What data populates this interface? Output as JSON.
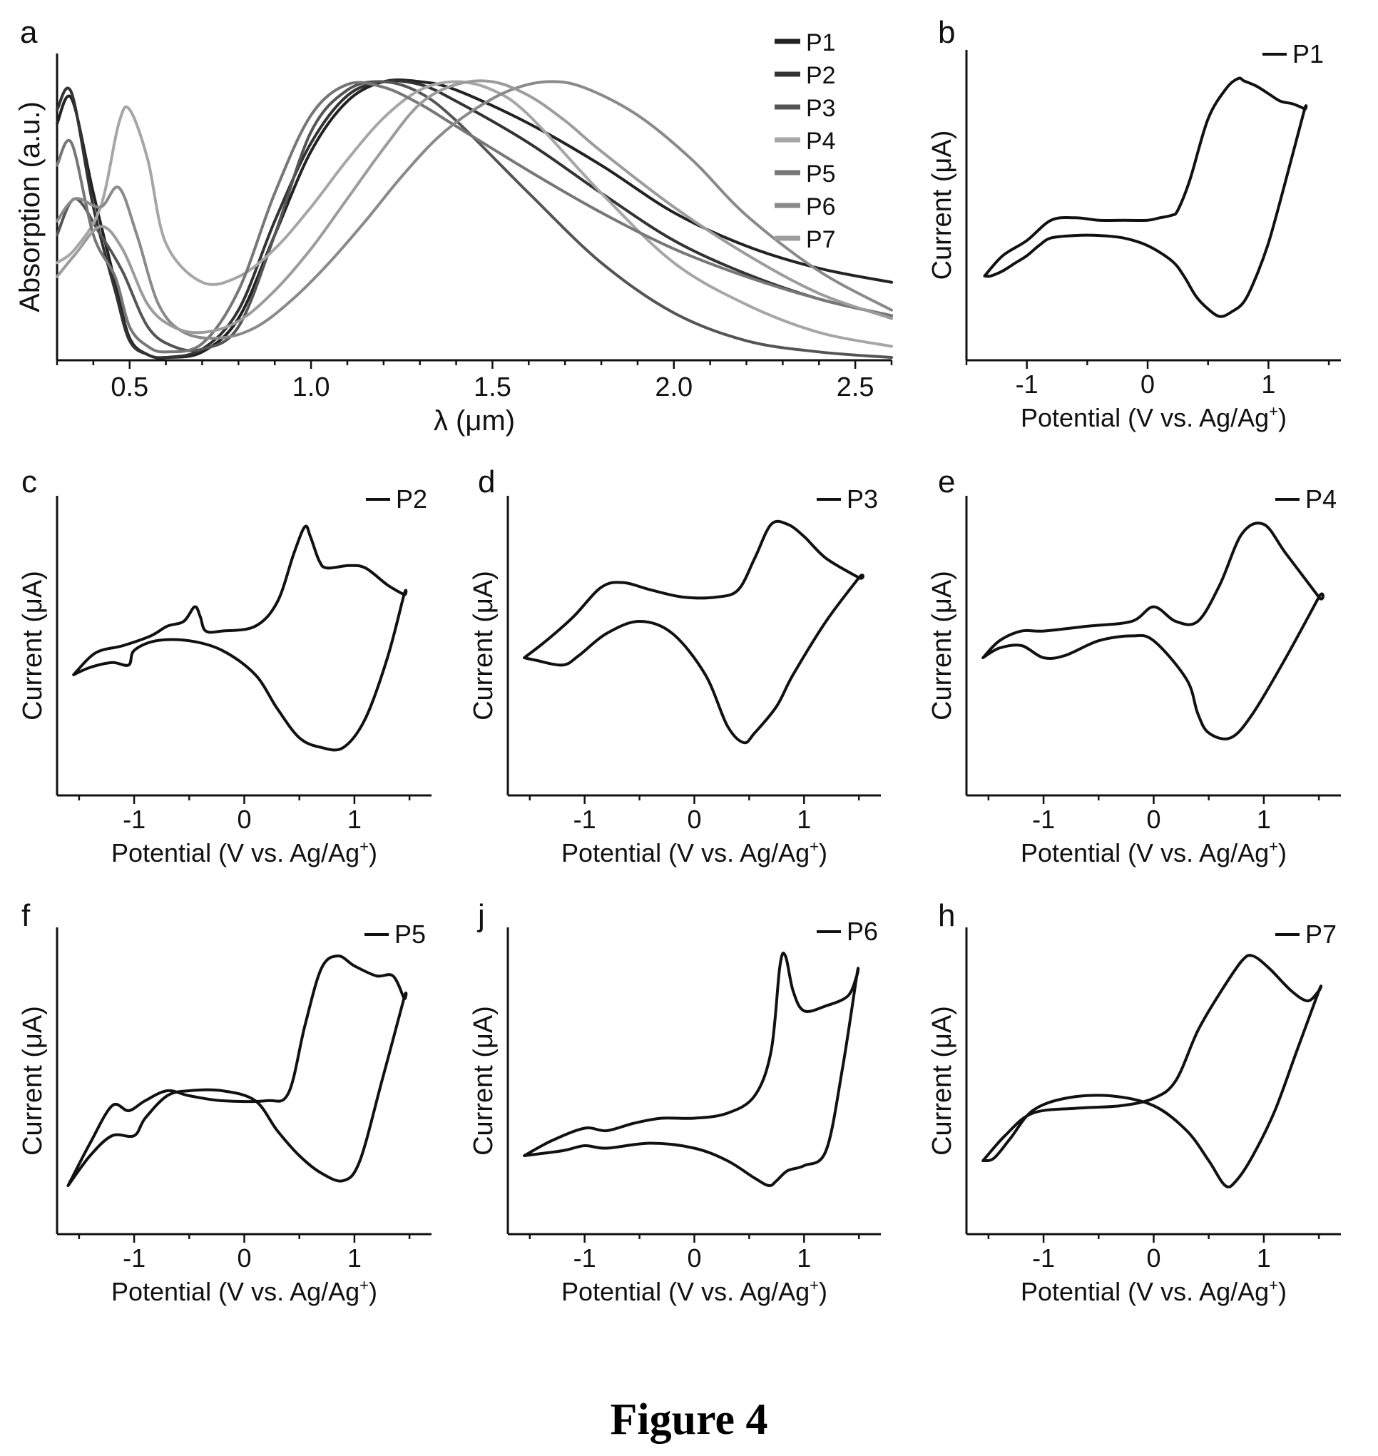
{
  "figure_caption": "Figure 4",
  "chart_data": [
    {
      "panel": "a",
      "type": "line",
      "xlabel": "λ (μm)",
      "ylabel": "Absorption (a.u.)",
      "xlim": [
        0.3,
        2.6
      ],
      "ylim": [
        0,
        1.05
      ],
      "xticks": [
        "0.5",
        "1.0",
        "1.5",
        "2.0",
        "2.5"
      ],
      "legend_position": "top-right",
      "series": [
        {
          "name": "P1",
          "color": "#222222",
          "x": [
            0.3,
            0.34,
            0.4,
            0.46,
            0.5,
            0.55,
            0.6,
            0.7,
            0.8,
            0.9,
            1.0,
            1.1,
            1.2,
            1.3,
            1.4,
            1.6,
            1.8,
            2.0,
            2.2,
            2.4,
            2.6
          ],
          "y": [
            0.85,
            0.94,
            0.6,
            0.28,
            0.08,
            0.02,
            0.01,
            0.03,
            0.15,
            0.45,
            0.75,
            0.93,
            1.0,
            1.0,
            0.97,
            0.85,
            0.7,
            0.53,
            0.41,
            0.33,
            0.28
          ]
        },
        {
          "name": "P2",
          "color": "#333333",
          "x": [
            0.3,
            0.34,
            0.4,
            0.46,
            0.5,
            0.55,
            0.6,
            0.7,
            0.8,
            0.9,
            1.0,
            1.1,
            1.2,
            1.3,
            1.4,
            1.6,
            1.8,
            2.0,
            2.2,
            2.4,
            2.6
          ],
          "y": [
            0.9,
            0.96,
            0.55,
            0.25,
            0.07,
            0.02,
            0.01,
            0.04,
            0.18,
            0.5,
            0.78,
            0.95,
            1.0,
            0.99,
            0.93,
            0.78,
            0.6,
            0.43,
            0.31,
            0.22,
            0.16
          ]
        },
        {
          "name": "P3",
          "color": "#555555",
          "x": [
            0.3,
            0.35,
            0.42,
            0.48,
            0.55,
            0.62,
            0.7,
            0.8,
            0.9,
            1.0,
            1.1,
            1.2,
            1.3,
            1.4,
            1.6,
            1.8,
            2.0,
            2.2,
            2.4,
            2.6
          ],
          "y": [
            0.45,
            0.58,
            0.45,
            0.32,
            0.12,
            0.05,
            0.04,
            0.12,
            0.45,
            0.82,
            0.97,
            1.0,
            0.96,
            0.86,
            0.6,
            0.35,
            0.17,
            0.07,
            0.03,
            0.01
          ]
        },
        {
          "name": "P4",
          "color": "#a6a6a6",
          "x": [
            0.3,
            0.35,
            0.42,
            0.47,
            0.5,
            0.55,
            0.6,
            0.7,
            0.8,
            0.9,
            1.0,
            1.1,
            1.2,
            1.3,
            1.4,
            1.5,
            1.6,
            1.8,
            2.0,
            2.2,
            2.4,
            2.6
          ],
          "y": [
            0.35,
            0.4,
            0.55,
            0.85,
            0.9,
            0.72,
            0.42,
            0.28,
            0.3,
            0.4,
            0.55,
            0.72,
            0.87,
            0.97,
            1.0,
            0.97,
            0.88,
            0.6,
            0.35,
            0.2,
            0.1,
            0.05
          ]
        },
        {
          "name": "P5",
          "color": "#777777",
          "x": [
            0.3,
            0.34,
            0.4,
            0.46,
            0.5,
            0.55,
            0.6,
            0.7,
            0.8,
            0.9,
            1.0,
            1.1,
            1.2,
            1.3,
            1.4,
            1.6,
            1.8,
            2.0,
            2.2,
            2.4,
            2.6
          ],
          "y": [
            0.7,
            0.78,
            0.45,
            0.3,
            0.12,
            0.05,
            0.03,
            0.06,
            0.25,
            0.6,
            0.88,
            0.99,
            0.98,
            0.92,
            0.84,
            0.68,
            0.53,
            0.4,
            0.3,
            0.22,
            0.16
          ]
        },
        {
          "name": "P6",
          "color": "#8a8a8a",
          "x": [
            0.3,
            0.35,
            0.42,
            0.47,
            0.52,
            0.58,
            0.65,
            0.75,
            0.85,
            0.95,
            1.05,
            1.15,
            1.25,
            1.35,
            1.45,
            1.55,
            1.65,
            1.75,
            1.9,
            2.05,
            2.2,
            2.4,
            2.6
          ],
          "y": [
            0.5,
            0.58,
            0.55,
            0.62,
            0.45,
            0.2,
            0.1,
            0.08,
            0.12,
            0.22,
            0.35,
            0.5,
            0.66,
            0.8,
            0.9,
            0.97,
            1.0,
            0.98,
            0.88,
            0.72,
            0.52,
            0.32,
            0.18
          ]
        },
        {
          "name": "P7",
          "color": "#9c9c9c",
          "x": [
            0.3,
            0.35,
            0.42,
            0.48,
            0.55,
            0.62,
            0.7,
            0.8,
            0.9,
            1.0,
            1.1,
            1.2,
            1.3,
            1.4,
            1.5,
            1.6,
            1.7,
            1.8,
            2.0,
            2.2,
            2.4,
            2.6
          ],
          "y": [
            0.3,
            0.38,
            0.48,
            0.4,
            0.2,
            0.12,
            0.1,
            0.14,
            0.25,
            0.4,
            0.58,
            0.76,
            0.92,
            0.99,
            1.0,
            0.95,
            0.86,
            0.75,
            0.55,
            0.38,
            0.24,
            0.15
          ]
        }
      ]
    },
    {
      "panel": "b",
      "type": "line",
      "series_name": "P1",
      "xlabel": "Potential (V vs. Ag/Ag+)",
      "ylabel": "Current (μA)",
      "xlim": [
        -1.5,
        1.6
      ],
      "ylim": [
        0,
        1
      ],
      "xticks": [
        "-1",
        "0",
        "1"
      ],
      "x": [
        -1.35,
        -1.2,
        -1.0,
        -0.8,
        -0.6,
        -0.4,
        -0.2,
        0.0,
        0.1,
        0.2,
        0.25,
        0.35,
        0.5,
        0.65,
        0.75,
        0.8,
        0.9,
        1.0,
        1.1,
        1.2,
        1.3,
        1.3,
        1.2,
        1.1,
        1.0,
        0.9,
        0.8,
        0.7,
        0.6,
        0.5,
        0.4,
        0.3,
        0.2,
        0.0,
        -0.2,
        -0.4,
        -0.6,
        -0.8,
        -0.9,
        -1.0,
        -1.1,
        -1.2,
        -1.3,
        -1.35
      ],
      "y": [
        0.22,
        0.3,
        0.36,
        0.44,
        0.45,
        0.44,
        0.44,
        0.44,
        0.45,
        0.46,
        0.48,
        0.6,
        0.84,
        0.96,
        1.0,
        0.99,
        0.97,
        0.94,
        0.91,
        0.9,
        0.88,
        0.88,
        0.7,
        0.52,
        0.35,
        0.22,
        0.12,
        0.08,
        0.06,
        0.09,
        0.14,
        0.22,
        0.28,
        0.34,
        0.37,
        0.38,
        0.38,
        0.37,
        0.34,
        0.3,
        0.27,
        0.24,
        0.22,
        0.22
      ]
    },
    {
      "panel": "c",
      "type": "line",
      "series_name": "P2",
      "xlabel": "Potential (V vs. Ag/Ag+)",
      "ylabel": "Current (μA)",
      "xlim": [
        -1.7,
        1.7
      ],
      "ylim": [
        0,
        1
      ],
      "xticks": [
        "-1",
        "0",
        "1"
      ],
      "x": [
        -1.55,
        -1.35,
        -1.1,
        -0.85,
        -0.7,
        -0.55,
        -0.45,
        -0.4,
        -0.35,
        -0.2,
        0.1,
        0.3,
        0.45,
        0.55,
        0.6,
        0.68,
        0.75,
        0.95,
        1.1,
        1.3,
        1.45,
        1.45,
        1.3,
        1.1,
        0.9,
        0.7,
        0.5,
        0.3,
        0.1,
        -0.2,
        -0.5,
        -0.8,
        -1.0,
        -1.05,
        -1.2,
        -1.4,
        -1.55
      ],
      "y": [
        0.38,
        0.47,
        0.5,
        0.54,
        0.58,
        0.6,
        0.66,
        0.62,
        0.56,
        0.56,
        0.58,
        0.68,
        0.88,
        0.99,
        0.95,
        0.85,
        0.82,
        0.83,
        0.82,
        0.75,
        0.71,
        0.71,
        0.45,
        0.2,
        0.08,
        0.08,
        0.12,
        0.24,
        0.38,
        0.48,
        0.52,
        0.52,
        0.48,
        0.42,
        0.43,
        0.41,
        0.38
      ]
    },
    {
      "panel": "d",
      "type": "line",
      "series_name": "P3",
      "xlabel": "Potential (V vs. Ag/Ag+)",
      "ylabel": "Current (μA)",
      "xlim": [
        -1.7,
        1.7
      ],
      "ylim": [
        0,
        1
      ],
      "xticks": [
        "-1",
        "0",
        "1"
      ],
      "x": [
        -1.55,
        -1.35,
        -1.1,
        -0.85,
        -0.65,
        -0.4,
        -0.1,
        0.2,
        0.4,
        0.55,
        0.7,
        0.85,
        1.0,
        1.2,
        1.5,
        1.5,
        1.2,
        0.9,
        0.75,
        0.55,
        0.45,
        0.3,
        0.1,
        -0.2,
        -0.5,
        -0.8,
        -1.05,
        -1.2,
        -1.45,
        -1.55
      ],
      "y": [
        0.45,
        0.52,
        0.62,
        0.74,
        0.76,
        0.73,
        0.7,
        0.7,
        0.73,
        0.86,
        1.0,
        1.0,
        0.95,
        0.86,
        0.78,
        0.78,
        0.6,
        0.38,
        0.25,
        0.14,
        0.1,
        0.17,
        0.38,
        0.55,
        0.6,
        0.55,
        0.46,
        0.42,
        0.44,
        0.45
      ]
    },
    {
      "panel": "e",
      "type": "line",
      "series_name": "P4",
      "xlabel": "Potential (V vs. Ag/Ag+)",
      "ylabel": "Current (μA)",
      "xlim": [
        -1.7,
        1.7
      ],
      "ylim": [
        0,
        1
      ],
      "xticks": [
        "-1",
        "0",
        "1"
      ],
      "x": [
        -1.55,
        -1.4,
        -1.2,
        -1.0,
        -0.6,
        -0.2,
        0.0,
        0.2,
        0.4,
        0.6,
        0.8,
        1.0,
        1.2,
        1.5,
        1.5,
        1.2,
        0.9,
        0.7,
        0.5,
        0.4,
        0.3,
        0.0,
        -0.2,
        -0.5,
        -0.8,
        -1.0,
        -1.2,
        -1.4,
        -1.55
      ],
      "y": [
        0.45,
        0.52,
        0.56,
        0.56,
        0.58,
        0.6,
        0.66,
        0.6,
        0.6,
        0.75,
        0.96,
        1.0,
        0.88,
        0.7,
        0.7,
        0.45,
        0.22,
        0.12,
        0.14,
        0.22,
        0.36,
        0.52,
        0.54,
        0.52,
        0.46,
        0.45,
        0.5,
        0.49,
        0.45
      ]
    },
    {
      "panel": "f",
      "type": "line",
      "series_name": "P5",
      "xlabel": "Potential (V vs. Ag/Ag+)",
      "ylabel": "Current (μA)",
      "xlim": [
        -1.7,
        1.7
      ],
      "ylim": [
        0,
        1
      ],
      "xticks": [
        "-1",
        "0",
        "1"
      ],
      "x": [
        -1.6,
        -1.4,
        -1.2,
        -1.05,
        -0.9,
        -0.7,
        -0.5,
        -0.2,
        0.2,
        0.4,
        0.55,
        0.7,
        0.85,
        1.0,
        1.2,
        1.35,
        1.45,
        1.45,
        1.25,
        1.05,
        0.9,
        0.7,
        0.5,
        0.3,
        0.1,
        -0.2,
        -0.5,
        -0.7,
        -0.9,
        -1.0,
        -1.2,
        -1.4,
        -1.6
      ],
      "y": [
        0.08,
        0.25,
        0.4,
        0.38,
        0.42,
        0.46,
        0.44,
        0.42,
        0.42,
        0.45,
        0.72,
        0.95,
        1.0,
        0.96,
        0.92,
        0.92,
        0.83,
        0.83,
        0.5,
        0.18,
        0.1,
        0.13,
        0.2,
        0.3,
        0.42,
        0.46,
        0.46,
        0.44,
        0.35,
        0.28,
        0.28,
        0.2,
        0.08
      ]
    },
    {
      "panel": "j",
      "type": "line",
      "series_name": "P6",
      "xlabel": "Potential (V vs. Ag/Ag+)",
      "ylabel": "Current (μA)",
      "xlim": [
        -1.7,
        1.7
      ],
      "ylim": [
        0,
        1
      ],
      "xticks": [
        "-1",
        "0",
        "1"
      ],
      "x": [
        -1.55,
        -1.3,
        -1.0,
        -0.8,
        -0.55,
        -0.3,
        0.0,
        0.3,
        0.55,
        0.7,
        0.78,
        0.83,
        0.9,
        1.0,
        1.2,
        1.4,
        1.48,
        1.48,
        1.35,
        1.2,
        1.0,
        0.85,
        0.75,
        0.68,
        0.55,
        0.3,
        0.0,
        -0.4,
        -0.8,
        -1.0,
        -1.2,
        -1.55
      ],
      "y": [
        0.2,
        0.26,
        0.31,
        0.3,
        0.33,
        0.35,
        0.35,
        0.37,
        0.44,
        0.62,
        0.96,
        1.0,
        0.86,
        0.78,
        0.8,
        0.84,
        0.92,
        0.92,
        0.55,
        0.22,
        0.16,
        0.14,
        0.1,
        0.08,
        0.11,
        0.18,
        0.23,
        0.25,
        0.23,
        0.24,
        0.22,
        0.2
      ]
    },
    {
      "panel": "h",
      "type": "line",
      "series_name": "P7",
      "xlabel": "Potential (V vs. Ag/Ag+)",
      "ylabel": "Current (μA)",
      "xlim": [
        -1.7,
        1.7
      ],
      "ylim": [
        0,
        1
      ],
      "xticks": [
        "-1",
        "0",
        "1"
      ],
      "x": [
        -1.55,
        -1.35,
        -1.1,
        -0.7,
        -0.3,
        0.0,
        0.2,
        0.4,
        0.6,
        0.8,
        0.9,
        1.05,
        1.25,
        1.4,
        1.5,
        1.5,
        1.3,
        1.1,
        0.9,
        0.75,
        0.65,
        0.5,
        0.3,
        0.0,
        -0.4,
        -0.8,
        -1.1,
        -1.3,
        -1.45,
        -1.55
      ],
      "y": [
        0.18,
        0.28,
        0.37,
        0.39,
        0.4,
        0.43,
        0.5,
        0.7,
        0.85,
        0.98,
        1.0,
        0.95,
        0.86,
        0.82,
        0.86,
        0.86,
        0.62,
        0.38,
        0.2,
        0.1,
        0.08,
        0.18,
        0.3,
        0.4,
        0.44,
        0.43,
        0.38,
        0.27,
        0.19,
        0.18
      ]
    }
  ],
  "legend_a": [
    "P1",
    "P2",
    "P3",
    "P4",
    "P5",
    "P6",
    "P7"
  ],
  "panel_labels": {
    "a": "a",
    "b": "b",
    "c": "c",
    "d": "d",
    "e": "e",
    "f": "f",
    "j": "j",
    "h": "h"
  }
}
